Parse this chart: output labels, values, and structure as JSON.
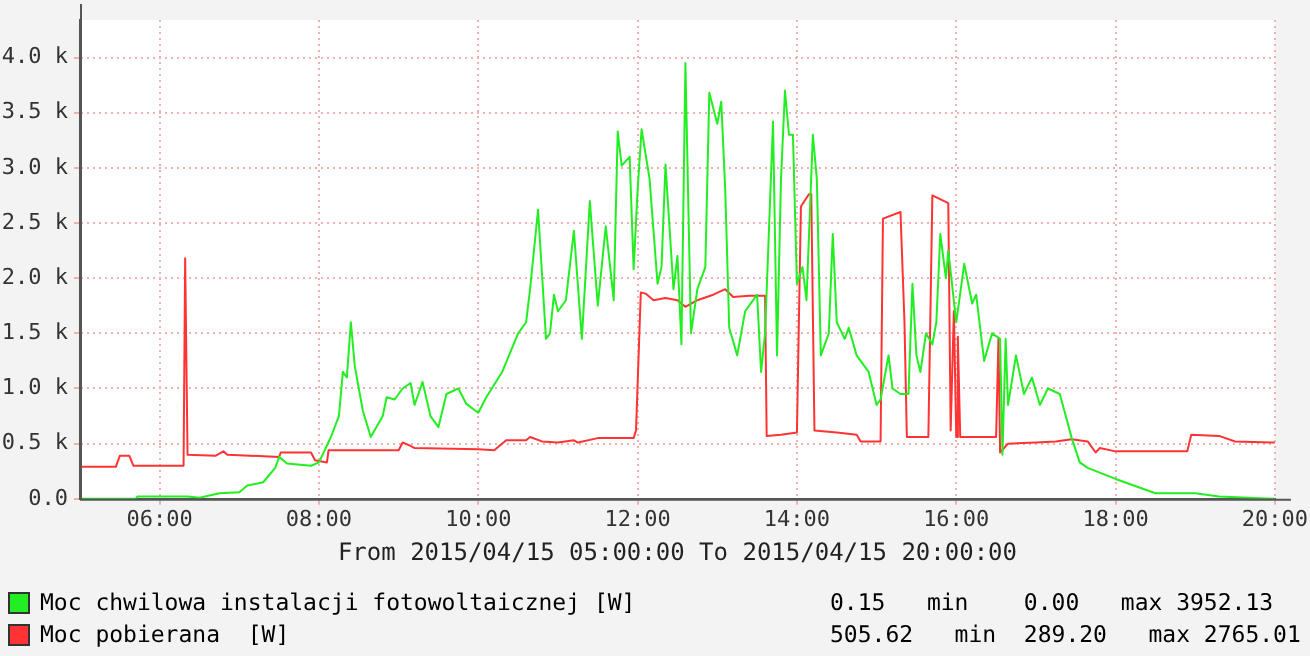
{
  "chart_data": {
    "type": "line",
    "xlabel": "From 2015/04/15 05:00:00 To 2015/04/15 20:00:00",
    "xlim": [
      5,
      20
    ],
    "xticks": [
      {
        "value": 6,
        "label": "06:00"
      },
      {
        "value": 8,
        "label": "08:00"
      },
      {
        "value": 10,
        "label": "10:00"
      },
      {
        "value": 12,
        "label": "12:00"
      },
      {
        "value": 14,
        "label": "14:00"
      },
      {
        "value": 16,
        "label": "16:00"
      },
      {
        "value": 18,
        "label": "18:00"
      },
      {
        "value": 20,
        "label": "20:00"
      }
    ],
    "ylim": [
      0,
      4340
    ],
    "yticks": [
      {
        "value": 0,
        "label": "0.0"
      },
      {
        "value": 500,
        "label": "0.5 k"
      },
      {
        "value": 1000,
        "label": "1.0 k"
      },
      {
        "value": 1500,
        "label": "1.5 k"
      },
      {
        "value": 2000,
        "label": "2.0 k"
      },
      {
        "value": 2500,
        "label": "2.5 k"
      },
      {
        "value": 3000,
        "label": "3.0 k"
      },
      {
        "value": 3500,
        "label": "3.5 k"
      },
      {
        "value": 4000,
        "label": "4.0 k"
      }
    ],
    "grid": true,
    "legend": "bottom",
    "marker": "none",
    "line_style": "solid",
    "annotations": [
      "0.15   min    0.00   max 3952.13",
      "505.62   min  289.20   max 2765.01"
    ],
    "series": [
      {
        "name": "Moc chwilowa instalacji fotowoltaicznej [W]",
        "color": "#22ee22",
        "x": [
          5,
          5.7,
          5.72,
          6.35,
          6.5,
          6.75,
          7,
          7.1,
          7.3,
          7.45,
          7.5,
          7.6,
          7.9,
          8,
          8.15,
          8.25,
          8.3,
          8.35,
          8.4,
          8.45,
          8.55,
          8.65,
          8.8,
          8.85,
          8.95,
          9.05,
          9.15,
          9.2,
          9.3,
          9.4,
          9.5,
          9.6,
          9.75,
          9.85,
          10,
          10.1,
          10.3,
          10.5,
          10.6,
          10.65,
          10.75,
          10.85,
          10.9,
          10.95,
          11,
          11.1,
          11.2,
          11.3,
          11.4,
          11.5,
          11.6,
          11.7,
          11.75,
          11.8,
          11.9,
          11.95,
          12,
          12.05,
          12.15,
          12.25,
          12.3,
          12.35,
          12.45,
          12.5,
          12.55,
          12.6,
          12.67,
          12.75,
          12.85,
          12.9,
          13,
          13.05,
          13.1,
          13.15,
          13.25,
          13.35,
          13.5,
          13.55,
          13.6,
          13.7,
          13.75,
          13.8,
          13.85,
          13.9,
          13.95,
          14,
          14.07,
          14.12,
          14.2,
          14.25,
          14.3,
          14.4,
          14.45,
          14.5,
          14.6,
          14.65,
          14.75,
          14.9,
          15,
          15.05,
          15.15,
          15.2,
          15.3,
          15.4,
          15.45,
          15.5,
          15.55,
          15.62,
          15.7,
          15.75,
          15.8,
          15.87,
          15.9,
          16,
          16.1,
          16.2,
          16.25,
          16.35,
          16.45,
          16.55,
          16.58,
          16.62,
          16.65,
          16.75,
          16.85,
          16.95,
          17.05,
          17.15,
          17.3,
          17.45,
          17.55,
          17.65,
          18,
          18.5,
          19,
          19.3,
          20
        ],
        "values": [
          0,
          0,
          20,
          20,
          10,
          50,
          60,
          120,
          150,
          280,
          380,
          320,
          300,
          330,
          560,
          750,
          1150,
          1100,
          1600,
          1200,
          800,
          560,
          750,
          920,
          900,
          1000,
          1050,
          850,
          1060,
          750,
          650,
          950,
          1000,
          860,
          780,
          920,
          1150,
          1500,
          1600,
          1900,
          2620,
          1450,
          1500,
          1850,
          1700,
          1800,
          2430,
          1450,
          2700,
          1750,
          2470,
          1800,
          3330,
          3020,
          3100,
          2080,
          2800,
          3350,
          2900,
          1950,
          2100,
          3030,
          1900,
          2200,
          1400,
          3950,
          1500,
          1900,
          2100,
          3680,
          3400,
          3600,
          2800,
          1550,
          1300,
          1700,
          1850,
          1150,
          1500,
          3420,
          1300,
          2900,
          3700,
          3300,
          3300,
          1950,
          2100,
          1800,
          3300,
          2900,
          1300,
          1500,
          2400,
          1600,
          1450,
          1550,
          1300,
          1150,
          850,
          900,
          1300,
          1000,
          950,
          950,
          1950,
          1300,
          1150,
          1500,
          1400,
          1600,
          2400,
          2000,
          2250,
          1600,
          2130,
          1770,
          1850,
          1250,
          1500,
          1450,
          400,
          1450,
          850,
          1300,
          950,
          1100,
          850,
          1000,
          950,
          550,
          330,
          280,
          180,
          50,
          50,
          20,
          0
        ]
      },
      {
        "name": "Moc pobierana  [W]",
        "color": "#ff3333",
        "x": [
          5,
          5.45,
          5.5,
          5.62,
          5.67,
          6.3,
          6.32,
          6.35,
          6.7,
          6.8,
          6.85,
          7.5,
          7.52,
          7.9,
          7.95,
          8.1,
          8.12,
          9,
          9.05,
          9.15,
          9.2,
          10,
          10.2,
          10.35,
          10.6,
          10.65,
          10.8,
          11,
          11.2,
          11.25,
          11.5,
          11.95,
          11.98,
          12.04,
          12.1,
          12.2,
          12.35,
          12.5,
          12.6,
          12.75,
          12.95,
          13.1,
          13.2,
          13.4,
          13.6,
          13.62,
          13.8,
          14,
          14.05,
          14.15,
          14.18,
          14.22,
          14.5,
          14.75,
          14.8,
          15.05,
          15.08,
          15.3,
          15.35,
          15.38,
          15.65,
          15.7,
          15.9,
          15.93,
          15.97,
          16,
          16.02,
          16.05,
          16.5,
          16.53,
          16.55,
          16.65,
          17,
          17.25,
          17.45,
          17.65,
          17.75,
          17.8,
          18,
          18.5,
          18.9,
          18.95,
          19.3,
          19.5,
          20
        ],
        "values": [
          290,
          290,
          390,
          390,
          300,
          300,
          2180,
          400,
          390,
          430,
          400,
          380,
          420,
          420,
          350,
          330,
          440,
          440,
          510,
          480,
          460,
          450,
          440,
          530,
          530,
          560,
          520,
          510,
          530,
          510,
          550,
          550,
          620,
          1870,
          1860,
          1800,
          1820,
          1800,
          1740,
          1800,
          1850,
          1900,
          1830,
          1840,
          1840,
          570,
          580,
          600,
          2650,
          2760,
          2760,
          620,
          600,
          580,
          520,
          520,
          2540,
          2600,
          1600,
          560,
          560,
          2750,
          2680,
          620,
          1700,
          560,
          1470,
          560,
          560,
          1450,
          420,
          500,
          510,
          520,
          540,
          520,
          420,
          460,
          430,
          430,
          430,
          580,
          570,
          520,
          510
        ]
      }
    ]
  }
}
